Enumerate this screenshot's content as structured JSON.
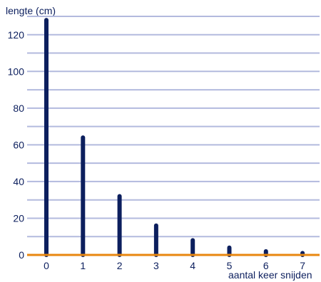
{
  "chart_data": {
    "type": "bar",
    "x": [
      0,
      1,
      2,
      3,
      4,
      5,
      6,
      7
    ],
    "values": [
      128,
      64,
      32,
      16,
      8,
      4,
      2,
      1
    ],
    "xlabel": "aantal keer snijden",
    "ylabel": "lengte (cm)",
    "ylim": [
      0,
      130
    ],
    "yticks": [
      0,
      20,
      40,
      60,
      80,
      100,
      120
    ],
    "grid": true,
    "colors": {
      "bars": "#0c1f5e",
      "grid": "#b3bade",
      "baseline": "#e8870f",
      "text": "#0c1f5e"
    }
  }
}
